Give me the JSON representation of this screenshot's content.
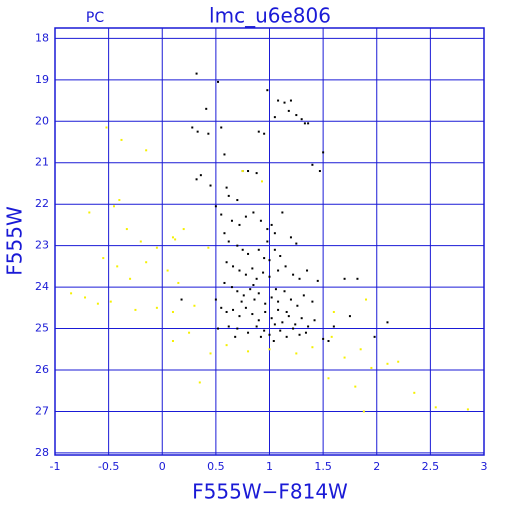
{
  "chart_data": {
    "type": "scatter",
    "title": "lmc_u6e806",
    "subtitle": "PC",
    "x_label": "F555W−F814W",
    "y_label": "F555W",
    "xlim": [
      -1,
      3
    ],
    "ylim": [
      28.05,
      17.75
    ],
    "xticks": [
      -1,
      -0.5,
      0,
      0.5,
      1,
      1.5,
      2,
      2.5,
      3
    ],
    "yticks": [
      18,
      19,
      20,
      21,
      22,
      23,
      24,
      25,
      26,
      27,
      28
    ],
    "grid": true,
    "axis_color": "#1a1ad6",
    "series": [
      {
        "color": "#000000",
        "x": [
          0.32,
          0.52,
          0.28,
          0.33,
          0.43,
          0.41,
          0.98,
          1.08,
          1.14,
          1.2,
          1.18,
          1.25,
          1.3,
          1.33,
          1.36,
          1.05,
          0.9,
          0.95,
          1.5,
          1.47,
          0.55,
          0.58,
          0.75,
          0.8,
          0.88,
          0.32,
          0.36,
          0.45,
          0.6,
          0.62,
          0.7,
          0.5,
          0.55,
          0.65,
          0.72,
          0.78,
          0.85,
          0.92,
          0.98,
          1.05,
          1.2,
          1.25,
          0.58,
          0.62,
          0.7,
          0.75,
          0.8,
          0.9,
          0.95,
          1.0,
          1.05,
          1.1,
          0.6,
          0.66,
          0.72,
          0.78,
          0.84,
          0.88,
          0.94,
          1.0,
          1.08,
          1.15,
          1.22,
          1.28,
          1.35,
          1.45,
          0.58,
          0.65,
          0.7,
          0.76,
          0.82,
          0.86,
          0.9,
          0.96,
          1.02,
          1.08,
          1.14,
          1.2,
          1.26,
          1.32,
          1.4,
          0.55,
          0.6,
          0.66,
          0.72,
          0.78,
          0.84,
          0.9,
          0.96,
          1.02,
          1.08,
          1.12,
          1.18,
          1.24,
          1.3,
          1.36,
          1.42,
          0.62,
          0.7,
          0.8,
          0.88,
          0.95,
          1.0,
          1.05,
          1.1,
          1.16,
          1.22,
          1.28,
          1.34,
          0.68,
          0.92,
          1.04,
          1.5,
          1.55,
          1.7,
          1.82,
          1.6,
          1.75,
          1.98,
          2.1,
          0.18,
          0.5,
          0.52,
          0.98,
          1.02,
          1.12,
          1.4,
          0.85,
          1.06,
          0.74,
          1.16
        ],
        "values": [
          18.85,
          19.05,
          20.15,
          20.25,
          20.3,
          19.7,
          19.25,
          19.5,
          19.55,
          19.5,
          19.75,
          19.85,
          19.95,
          20.05,
          20.05,
          19.9,
          20.25,
          20.3,
          20.75,
          21.2,
          20.15,
          20.8,
          21.2,
          21.2,
          21.25,
          21.4,
          21.3,
          21.55,
          21.6,
          21.8,
          21.9,
          22.05,
          22.25,
          22.4,
          22.5,
          22.3,
          22.2,
          22.4,
          22.6,
          22.7,
          22.8,
          22.95,
          22.7,
          22.9,
          23.0,
          23.1,
          23.2,
          23.1,
          23.3,
          23.35,
          23.1,
          23.25,
          23.4,
          23.5,
          23.6,
          23.7,
          23.55,
          23.8,
          23.65,
          23.75,
          23.6,
          23.5,
          23.7,
          23.8,
          23.6,
          23.85,
          23.9,
          24.0,
          24.1,
          24.2,
          24.05,
          24.3,
          24.15,
          24.4,
          24.25,
          24.35,
          24.1,
          24.3,
          24.45,
          24.2,
          24.35,
          24.5,
          24.6,
          24.55,
          24.7,
          24.5,
          24.65,
          24.8,
          24.6,
          24.75,
          24.55,
          24.85,
          24.7,
          24.9,
          24.75,
          24.95,
          24.8,
          24.95,
          25.0,
          25.1,
          24.95,
          25.05,
          25.15,
          24.9,
          25.05,
          25.2,
          25.0,
          25.15,
          25.1,
          25.2,
          25.2,
          25.3,
          25.25,
          25.3,
          23.8,
          23.8,
          24.95,
          24.7,
          25.2,
          24.85,
          24.3,
          24.3,
          25.0,
          22.9,
          22.5,
          22.2,
          21.05,
          23.95,
          24.05,
          24.35,
          24.6
        ]
      },
      {
        "color": "#f5f000",
        "x": [
          -0.52,
          -0.38,
          -0.15,
          -0.68,
          -0.45,
          -0.33,
          -0.2,
          -0.05,
          0.1,
          0.2,
          -0.55,
          -0.42,
          -0.3,
          -0.15,
          0.05,
          0.15,
          -0.85,
          -0.72,
          -0.6,
          -0.48,
          -0.25,
          -0.05,
          0.1,
          0.3,
          0.45,
          0.6,
          0.8,
          1.0,
          1.25,
          1.4,
          1.58,
          1.7,
          1.85,
          1.95,
          2.1,
          2.2,
          2.35,
          2.55,
          2.85,
          1.55,
          1.8,
          1.88,
          0.35,
          0.25,
          0.1,
          1.6,
          1.9,
          0.43,
          0.75,
          0.93,
          -0.4,
          0.12
        ],
        "values": [
          20.15,
          20.45,
          20.7,
          22.2,
          22.05,
          22.6,
          22.9,
          23.05,
          22.8,
          22.6,
          23.3,
          23.5,
          23.8,
          23.4,
          23.6,
          23.9,
          24.15,
          24.25,
          24.4,
          24.35,
          24.55,
          24.5,
          24.6,
          24.45,
          25.6,
          25.4,
          25.55,
          25.5,
          25.6,
          25.45,
          25.2,
          25.7,
          25.5,
          25.95,
          25.85,
          25.8,
          26.55,
          26.9,
          26.95,
          26.2,
          26.4,
          27.0,
          26.3,
          25.1,
          25.3,
          24.6,
          24.3,
          23.05,
          21.2,
          21.45,
          21.9,
          22.85
        ]
      }
    ]
  }
}
